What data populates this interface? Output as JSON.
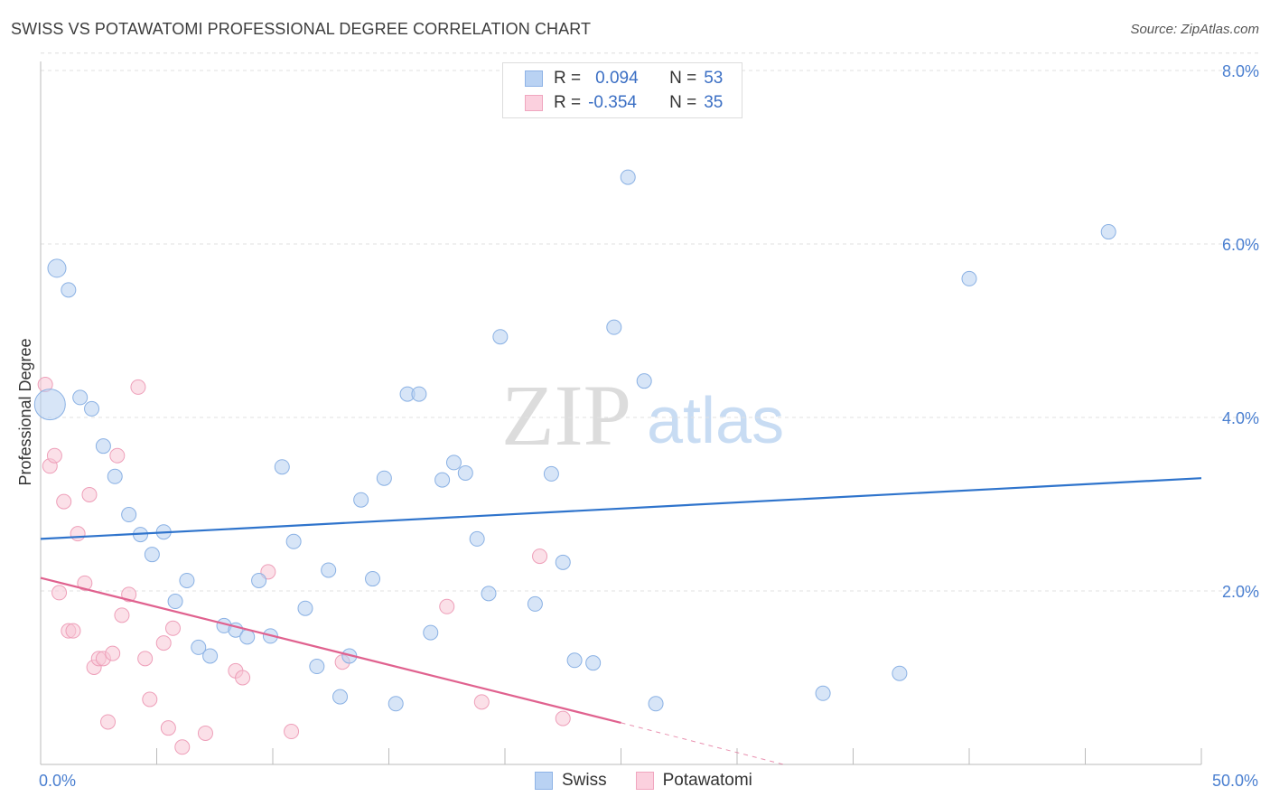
{
  "title": "SWISS VS POTAWATOMI PROFESSIONAL DEGREE CORRELATION CHART",
  "source": "Source: ZipAtlas.com",
  "watermark": {
    "zip": "ZIP",
    "atlas": "atlas"
  },
  "legend": {
    "r_label": "R =",
    "n_label": "N =",
    "rows": [
      {
        "r": "0.094",
        "n": "53"
      },
      {
        "r": "-0.354",
        "n": "35"
      }
    ]
  },
  "bottom_legend": {
    "swiss": "Swiss",
    "potawatomi": "Potawatomi"
  },
  "chart_data": {
    "type": "scatter",
    "title": "SWISS VS POTAWATOMI PROFESSIONAL DEGREE CORRELATION CHART",
    "ylabel": "Professional Degree",
    "xlabel": "",
    "xlim": [
      0,
      50
    ],
    "ylim": [
      0,
      8
    ],
    "x_tick_labels": [
      "0.0%",
      "50.0%"
    ],
    "y_ticks": [
      2,
      4,
      6,
      8
    ],
    "y_tick_labels": [
      "2.0%",
      "4.0%",
      "6.0%",
      "8.0%"
    ],
    "grid": true,
    "colors": {
      "swiss": "#9fc2ee",
      "swiss_line": "#2f74cc",
      "potawatomi": "#f6b6c9",
      "potawatomi_line": "#e0628f"
    },
    "series": [
      {
        "name": "Swiss",
        "r": 0.094,
        "n": 53,
        "trend": {
          "x": [
            0,
            50
          ],
          "y": [
            2.6,
            3.3
          ]
        },
        "points": [
          [
            0.4,
            4.15
          ],
          [
            0.7,
            5.72
          ],
          [
            1.2,
            5.47
          ],
          [
            1.7,
            4.23
          ],
          [
            2.2,
            4.1
          ],
          [
            2.7,
            3.67
          ],
          [
            3.2,
            3.32
          ],
          [
            3.8,
            2.88
          ],
          [
            4.3,
            2.65
          ],
          [
            4.8,
            2.42
          ],
          [
            5.3,
            2.68
          ],
          [
            5.8,
            1.88
          ],
          [
            6.3,
            2.12
          ],
          [
            6.8,
            1.35
          ],
          [
            7.3,
            1.25
          ],
          [
            7.9,
            1.6
          ],
          [
            8.4,
            1.55
          ],
          [
            8.9,
            1.47
          ],
          [
            9.4,
            2.12
          ],
          [
            9.9,
            1.48
          ],
          [
            10.4,
            3.43
          ],
          [
            10.9,
            2.57
          ],
          [
            11.4,
            1.8
          ],
          [
            11.9,
            1.13
          ],
          [
            12.4,
            2.24
          ],
          [
            12.9,
            0.78
          ],
          [
            13.3,
            1.25
          ],
          [
            13.8,
            3.05
          ],
          [
            14.3,
            2.14
          ],
          [
            14.8,
            3.3
          ],
          [
            15.3,
            0.7
          ],
          [
            15.8,
            4.27
          ],
          [
            16.3,
            4.27
          ],
          [
            16.8,
            1.52
          ],
          [
            17.3,
            3.28
          ],
          [
            17.8,
            3.48
          ],
          [
            18.3,
            3.36
          ],
          [
            18.8,
            2.6
          ],
          [
            19.3,
            1.97
          ],
          [
            19.8,
            4.93
          ],
          [
            21.3,
            1.85
          ],
          [
            22.0,
            3.35
          ],
          [
            22.5,
            2.33
          ],
          [
            23.0,
            1.2
          ],
          [
            23.8,
            1.17
          ],
          [
            24.7,
            5.04
          ],
          [
            25.3,
            6.77
          ],
          [
            26.0,
            4.42
          ],
          [
            26.5,
            0.7
          ],
          [
            33.7,
            0.82
          ],
          [
            37.0,
            1.05
          ],
          [
            40.0,
            5.6
          ],
          [
            46.0,
            6.14
          ]
        ]
      },
      {
        "name": "Potawatomi",
        "r": -0.354,
        "n": 35,
        "trend": {
          "x": [
            0,
            25
          ],
          "y": [
            2.15,
            0.48
          ]
        },
        "trend_dashed": {
          "x": [
            25,
            32
          ],
          "y": [
            0.48,
            0.0
          ]
        },
        "points": [
          [
            0.2,
            4.38
          ],
          [
            0.4,
            3.44
          ],
          [
            0.6,
            3.56
          ],
          [
            0.8,
            1.98
          ],
          [
            1.0,
            3.03
          ],
          [
            1.2,
            1.54
          ],
          [
            1.4,
            1.54
          ],
          [
            1.6,
            2.66
          ],
          [
            1.9,
            2.09
          ],
          [
            2.1,
            3.11
          ],
          [
            2.3,
            1.12
          ],
          [
            2.5,
            1.22
          ],
          [
            2.7,
            1.22
          ],
          [
            2.9,
            0.49
          ],
          [
            3.1,
            1.28
          ],
          [
            3.3,
            3.56
          ],
          [
            3.5,
            1.72
          ],
          [
            3.8,
            1.96
          ],
          [
            4.2,
            4.35
          ],
          [
            4.5,
            1.22
          ],
          [
            4.7,
            0.75
          ],
          [
            5.3,
            1.4
          ],
          [
            5.5,
            0.42
          ],
          [
            5.7,
            1.57
          ],
          [
            6.1,
            0.2
          ],
          [
            7.1,
            0.36
          ],
          [
            8.4,
            1.08
          ],
          [
            8.7,
            1.0
          ],
          [
            9.8,
            2.22
          ],
          [
            10.8,
            0.38
          ],
          [
            13.0,
            1.18
          ],
          [
            17.5,
            1.82
          ],
          [
            19.0,
            0.72
          ],
          [
            21.5,
            2.4
          ],
          [
            22.5,
            0.53
          ]
        ]
      }
    ]
  }
}
